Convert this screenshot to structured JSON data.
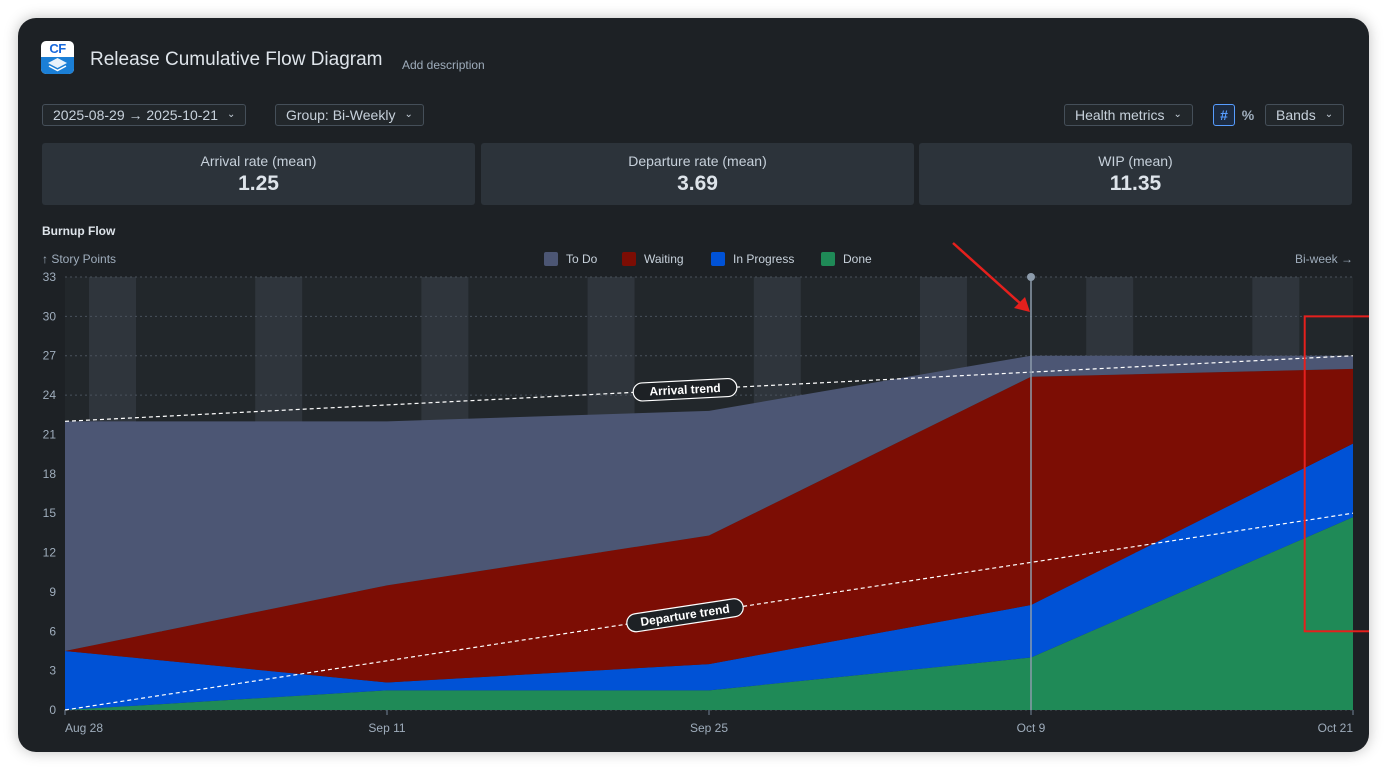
{
  "header": {
    "app_icon_text": "CF",
    "title": "Release Cumulative Flow Diagram",
    "add_description": "Add description"
  },
  "toolbar": {
    "date_range": "2025-08-29 → 2025-10-21",
    "group": "Group: Bi-Weekly",
    "health_metrics": "Health metrics",
    "count_symbol": "#",
    "percent_symbol": "%",
    "bands": "Bands"
  },
  "metrics": [
    {
      "label": "Arrival rate (mean)",
      "value": "1.25"
    },
    {
      "label": "Departure rate (mean)",
      "value": "3.69"
    },
    {
      "label": "WIP (mean)",
      "value": "11.35"
    }
  ],
  "section_title": "Burnup Flow",
  "colors": {
    "todo": "#4c5674",
    "waiting": "#7c0d04",
    "in_progress": "#0052d6",
    "done": "#1f8a57",
    "annotation": "#e5201d"
  },
  "chart_data": {
    "type": "area",
    "stacked": true,
    "ylabel": "↑ Story Points",
    "xlabel": "Bi-week →",
    "ylim": [
      0,
      33
    ],
    "yticks": [
      0,
      3,
      6,
      9,
      12,
      15,
      18,
      21,
      24,
      27,
      30,
      33
    ],
    "x": [
      "Aug 28",
      "Sep 11",
      "Sep 25",
      "Oct 9",
      "Oct 21"
    ],
    "legend_position": "top-center",
    "grid": true,
    "series": [
      {
        "name": "Done",
        "color": "#1f8a57",
        "values": [
          0,
          1.5,
          1.5,
          4,
          14.7
        ]
      },
      {
        "name": "In Progress",
        "color": "#0052d6",
        "values": [
          4.5,
          0.6,
          2,
          4,
          5.6
        ]
      },
      {
        "name": "Waiting",
        "color": "#7c0d04",
        "values": [
          0,
          7.4,
          9.8,
          17.4,
          5.7
        ]
      },
      {
        "name": "To Do",
        "color": "#4c5674",
        "values": [
          17.5,
          12.5,
          9.5,
          1.6,
          1
        ]
      }
    ],
    "legend_order": [
      "To Do",
      "Waiting",
      "In Progress",
      "Done"
    ],
    "trendlines": [
      {
        "label": "Arrival trend",
        "from": 22,
        "to": 27
      },
      {
        "label": "Departure trend",
        "from": 0,
        "to": 15
      }
    ],
    "cursor_x": "Oct 9",
    "highlight": {
      "x_from": 3.85,
      "x_to": 4.15,
      "y_from": 6,
      "y_to": 30
    }
  }
}
